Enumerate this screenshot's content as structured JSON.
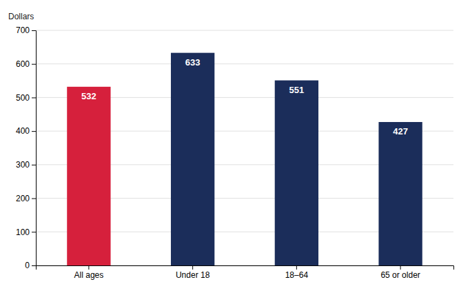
{
  "chart_data": {
    "type": "bar",
    "ylabel": "Dollars",
    "categories": [
      "All ages",
      "Under 18",
      "18–64",
      "65 or older"
    ],
    "values": [
      532,
      633,
      551,
      427
    ],
    "colors": [
      "#D6203C",
      "#1B2D5A",
      "#1B2D5A",
      "#1B2D5A"
    ],
    "ylim": [
      0,
      700
    ],
    "yticks": [
      0,
      100,
      200,
      300,
      400,
      500,
      600,
      700
    ],
    "grid": true,
    "data_labels": true
  }
}
